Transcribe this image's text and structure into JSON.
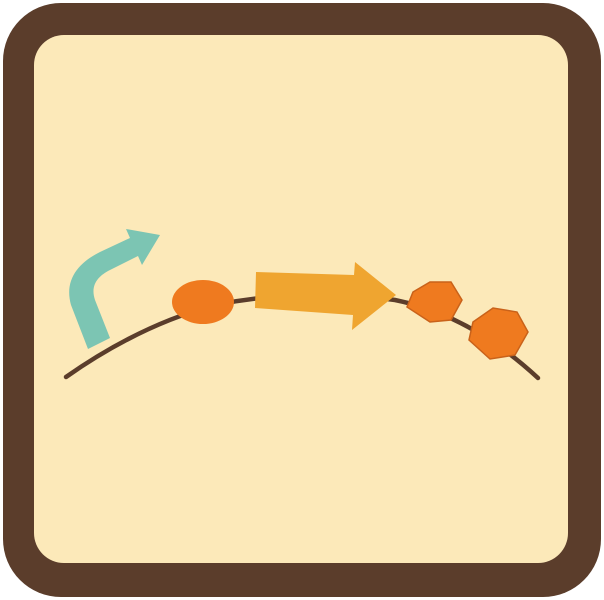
{
  "icon": {
    "semantic": "genetic-circuit-icon",
    "colors": {
      "frame": "#5b3d2b",
      "background": "#fce9b9",
      "dna_backbone": "#5b3d2b",
      "promoter": "#7cc5b3",
      "rbs": "#ef7a1f",
      "cds": "#efa530",
      "product_hexagon": "#ef7a1f"
    },
    "parts": [
      "promoter-icon",
      "rbs-icon",
      "cds-arrow-icon",
      "protein-product-icon",
      "protein-product-icon"
    ]
  }
}
